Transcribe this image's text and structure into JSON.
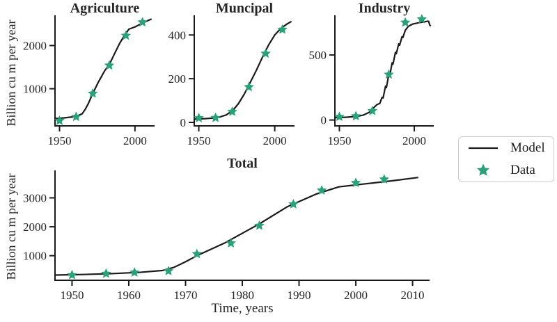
{
  "figure": {
    "background": "#ffffff",
    "line_color": "#1a1a1a",
    "marker_color": "#2aa179",
    "text_color": "#262626",
    "legend_border_color": "#cccccc"
  },
  "labels": {
    "ylabel_top": "Billion cu m per year",
    "ylabel_bottom": "Billion cu m per year",
    "xlabel": "Time, years"
  },
  "legend": {
    "items": [
      {
        "label": "Model",
        "marker": "line"
      },
      {
        "label": "Data",
        "marker": "star"
      }
    ]
  },
  "chart_data": [
    {
      "id": "agriculture",
      "type": "line",
      "title": "Agriculture",
      "xlim": [
        1947,
        2013
      ],
      "ylim": [
        140,
        2700
      ],
      "xticks": [
        1950,
        2000
      ],
      "yticks": [
        1000,
        2000
      ],
      "grid": false,
      "series": [
        {
          "name": "Model",
          "type": "line",
          "x": [
            1947,
            1953,
            1958,
            1962,
            1965,
            1967,
            1969,
            1972,
            1976,
            1980,
            1983,
            1987,
            1990,
            1993,
            1996,
            2000,
            2005,
            2011
          ],
          "y": [
            310,
            325,
            345,
            375,
            420,
            520,
            650,
            890,
            1170,
            1420,
            1560,
            1850,
            2060,
            2230,
            2380,
            2430,
            2520,
            2615
          ]
        },
        {
          "name": "Data",
          "type": "scatter",
          "x": [
            1950,
            1961,
            1972,
            1983,
            1994,
            2005
          ],
          "y": [
            260,
            350,
            890,
            1540,
            2230,
            2540
          ]
        }
      ]
    },
    {
      "id": "municipal",
      "type": "line",
      "title": "Muncipal",
      "xlim": [
        1947,
        2013
      ],
      "ylim": [
        -16,
        490
      ],
      "xticks": [
        1950,
        2000
      ],
      "yticks": [
        0,
        200,
        400
      ],
      "grid": false,
      "series": [
        {
          "name": "Model",
          "type": "line",
          "x": [
            1947,
            1954,
            1960,
            1964,
            1968,
            1971,
            1973,
            1976,
            1980,
            1984,
            1988,
            1992,
            1996,
            2000,
            2004,
            2008,
            2011
          ],
          "y": [
            15,
            17,
            20,
            25,
            34,
            48,
            60,
            85,
            130,
            185,
            240,
            300,
            355,
            400,
            430,
            450,
            462
          ]
        },
        {
          "name": "Data",
          "type": "scatter",
          "x": [
            1950,
            1961,
            1972,
            1983,
            1994,
            2005
          ],
          "y": [
            20,
            21,
            49,
            162,
            315,
            425
          ]
        }
      ]
    },
    {
      "id": "industry",
      "type": "line",
      "title": "Industry",
      "xlim": [
        1947,
        2013
      ],
      "ylim": [
        -45,
        805
      ],
      "xticks": [
        1950,
        2000
      ],
      "yticks": [
        0,
        500
      ],
      "grid": false,
      "series": [
        {
          "name": "Model",
          "type": "line",
          "x": [
            1947,
            1955,
            1962,
            1966,
            1970,
            1973,
            1975,
            1977,
            1978.5,
            1979.2,
            1980.8,
            1981.4,
            1983,
            1983.6,
            1985.2,
            1985.8,
            1987.4,
            1988,
            1989.6,
            1990.2,
            1991.8,
            1992.4,
            1994,
            1996,
            1999,
            2003,
            2007,
            2009,
            2009.6,
            2010.4,
            2011
          ],
          "y": [
            18,
            22,
            28,
            38,
            60,
            95,
            118,
            128,
            175,
            170,
            260,
            250,
            350,
            340,
            440,
            430,
            520,
            510,
            585,
            575,
            640,
            635,
            690,
            720,
            738,
            748,
            755,
            760,
            758,
            728,
            722
          ]
        },
        {
          "name": "Data",
          "type": "scatter",
          "x": [
            1950,
            1961,
            1972,
            1983,
            1994,
            2005
          ],
          "y": [
            25,
            30,
            70,
            350,
            750,
            775
          ]
        }
      ]
    },
    {
      "id": "total",
      "type": "line",
      "title": "Total",
      "xlim": [
        1947,
        2013
      ],
      "ylim": [
        150,
        3950
      ],
      "xticks": [
        1950,
        1960,
        1970,
        1980,
        1990,
        2000,
        2010
      ],
      "yticks": [
        1000,
        2000,
        3000
      ],
      "grid": false,
      "xlabel": "Time, years",
      "series": [
        {
          "name": "Model",
          "type": "line",
          "x": [
            1947,
            1952,
            1957,
            1962,
            1966,
            1968,
            1970,
            1972,
            1977,
            1983,
            1988,
            1993,
            1997,
            2001,
            2006,
            2011
          ],
          "y": [
            330,
            350,
            380,
            425,
            490,
            600,
            790,
            1000,
            1450,
            2100,
            2700,
            3130,
            3380,
            3470,
            3580,
            3705
          ]
        },
        {
          "name": "Data",
          "type": "scatter",
          "x": [
            1950,
            1956,
            1961,
            1967,
            1972,
            1978,
            1983,
            1989,
            1994,
            2000,
            2005
          ],
          "y": [
            330,
            380,
            420,
            470,
            1060,
            1430,
            2040,
            2780,
            3260,
            3520,
            3640
          ]
        }
      ]
    }
  ]
}
